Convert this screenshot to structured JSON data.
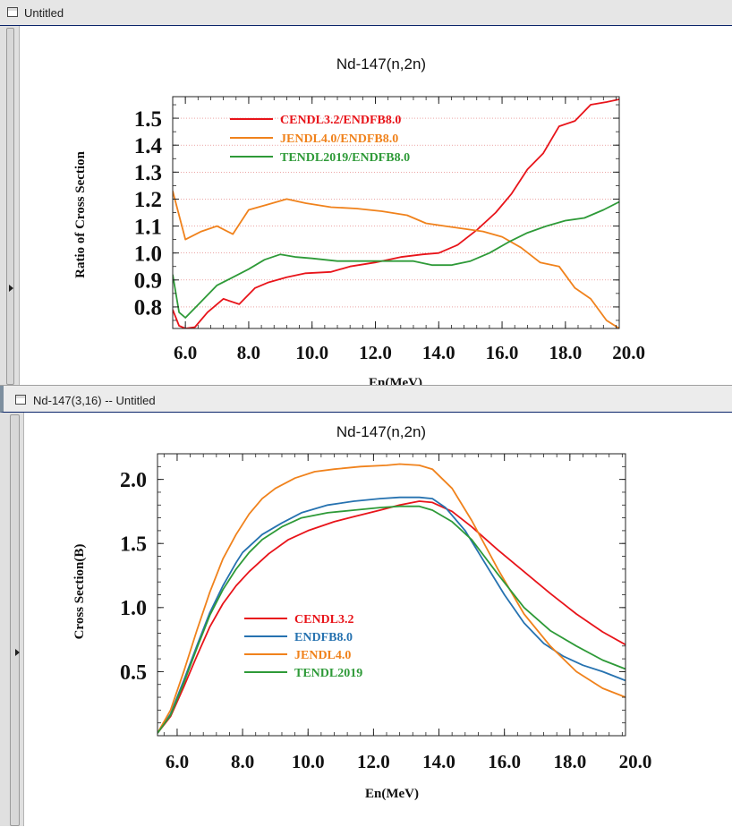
{
  "windows": [
    {
      "title": "Untitled"
    },
    {
      "title": "Nd-147(3,16) -- Untitled"
    }
  ],
  "colors": {
    "red": "#e8141a",
    "blue": "#2672b0",
    "orange": "#f0821c",
    "green": "#2e9a38"
  },
  "chart_data": [
    {
      "type": "line",
      "title": "Nd-147(n,2n)",
      "xlabel": "En(MeV)",
      "ylabel": "Ratio of Cross Section",
      "xlim": [
        5.6,
        19.7
      ],
      "ylim": [
        0.72,
        1.58
      ],
      "xticks": [
        6.0,
        8.0,
        10.0,
        12.0,
        14.0,
        16.0,
        18.0,
        20.0
      ],
      "yticks": [
        0.8,
        0.9,
        1.0,
        1.1,
        1.2,
        1.3,
        1.4,
        1.5
      ],
      "grid": "dotted horizontal",
      "legend_position": "top-left",
      "series": [
        {
          "name": "CENDL3.2/ENDFB8.0",
          "color": "#e8141a",
          "x": [
            5.6,
            5.8,
            6.0,
            6.3,
            6.7,
            7.2,
            7.7,
            8.2,
            8.6,
            9.2,
            9.8,
            10.6,
            11.2,
            12.0,
            12.8,
            13.5,
            14.0,
            14.6,
            15.2,
            15.8,
            16.3,
            16.8,
            17.3,
            17.8,
            18.3,
            18.8,
            19.3,
            19.7
          ],
          "y": [
            0.79,
            0.73,
            0.72,
            0.725,
            0.78,
            0.83,
            0.81,
            0.87,
            0.89,
            0.91,
            0.925,
            0.93,
            0.95,
            0.965,
            0.985,
            0.995,
            1.0,
            1.03,
            1.085,
            1.15,
            1.22,
            1.31,
            1.37,
            1.47,
            1.49,
            1.55,
            1.56,
            1.57
          ]
        },
        {
          "name": "JENDL4.0/ENDFB8.0",
          "color": "#f0821c",
          "x": [
            5.6,
            6.0,
            6.5,
            7.0,
            7.5,
            8.0,
            8.6,
            9.2,
            9.8,
            10.6,
            11.4,
            12.2,
            13.0,
            13.6,
            14.2,
            14.8,
            15.4,
            16.0,
            16.6,
            17.2,
            17.8,
            18.3,
            18.8,
            19.3,
            19.7
          ],
          "y": [
            1.23,
            1.05,
            1.08,
            1.1,
            1.07,
            1.16,
            1.18,
            1.2,
            1.185,
            1.17,
            1.165,
            1.155,
            1.14,
            1.11,
            1.1,
            1.09,
            1.08,
            1.06,
            1.02,
            0.965,
            0.95,
            0.87,
            0.83,
            0.75,
            0.72
          ]
        },
        {
          "name": "TENDL2019/ENDFB8.0",
          "color": "#2e9a38",
          "x": [
            5.6,
            5.8,
            6.0,
            6.5,
            7.0,
            7.5,
            8.0,
            8.5,
            9.0,
            9.5,
            10.0,
            10.8,
            11.6,
            12.4,
            13.2,
            13.8,
            14.4,
            15.0,
            15.6,
            16.2,
            16.8,
            17.4,
            18.0,
            18.6,
            19.2,
            19.7
          ],
          "y": [
            0.92,
            0.78,
            0.76,
            0.82,
            0.88,
            0.91,
            0.94,
            0.975,
            0.995,
            0.985,
            0.98,
            0.97,
            0.97,
            0.97,
            0.97,
            0.955,
            0.955,
            0.97,
            1.0,
            1.04,
            1.075,
            1.1,
            1.12,
            1.13,
            1.16,
            1.19
          ]
        }
      ]
    },
    {
      "type": "line",
      "title": "Nd-147(n,2n)",
      "xlabel": "En(MeV)",
      "ylabel": "Cross Section(B)",
      "xlim": [
        5.4,
        19.7
      ],
      "ylim": [
        0.0,
        2.2
      ],
      "xticks": [
        6.0,
        8.0,
        10.0,
        12.0,
        14.0,
        16.0,
        18.0,
        20.0
      ],
      "yticks": [
        0.5,
        1.0,
        1.5,
        2.0
      ],
      "grid": "off",
      "legend_position": "bottom-left",
      "series": [
        {
          "name": "CENDL3.2",
          "color": "#e8141a",
          "x": [
            5.4,
            5.8,
            6.2,
            6.6,
            7.0,
            7.4,
            7.8,
            8.2,
            8.8,
            9.4,
            10.0,
            10.8,
            11.4,
            12.2,
            12.8,
            13.4,
            13.8,
            14.4,
            15.0,
            15.8,
            16.6,
            17.4,
            18.2,
            19.0,
            19.7
          ],
          "y": [
            0.02,
            0.15,
            0.38,
            0.62,
            0.85,
            1.03,
            1.17,
            1.28,
            1.42,
            1.53,
            1.6,
            1.67,
            1.71,
            1.76,
            1.8,
            1.83,
            1.82,
            1.75,
            1.63,
            1.45,
            1.28,
            1.11,
            0.95,
            0.81,
            0.71
          ]
        },
        {
          "name": "ENDFB8.0",
          "color": "#2672b0",
          "x": [
            5.4,
            5.8,
            6.2,
            6.6,
            7.0,
            7.4,
            7.8,
            8.0,
            8.6,
            9.2,
            9.8,
            10.6,
            11.4,
            12.2,
            12.8,
            13.4,
            13.8,
            14.2,
            14.8,
            15.4,
            16.0,
            16.6,
            17.2,
            17.8,
            18.4,
            19.0,
            19.7
          ],
          "y": [
            0.02,
            0.17,
            0.43,
            0.7,
            0.96,
            1.17,
            1.35,
            1.43,
            1.57,
            1.66,
            1.74,
            1.8,
            1.83,
            1.85,
            1.86,
            1.86,
            1.85,
            1.78,
            1.6,
            1.35,
            1.1,
            0.88,
            0.72,
            0.62,
            0.55,
            0.5,
            0.43
          ]
        },
        {
          "name": "JENDL4.0",
          "color": "#f0821c",
          "x": [
            5.4,
            5.8,
            6.2,
            6.6,
            7.0,
            7.4,
            7.8,
            8.2,
            8.6,
            9.0,
            9.6,
            10.2,
            10.8,
            11.6,
            12.4,
            12.8,
            13.4,
            13.8,
            14.4,
            15.0,
            15.8,
            16.6,
            17.4,
            18.2,
            19.0,
            19.7
          ],
          "y": [
            0.02,
            0.2,
            0.5,
            0.82,
            1.12,
            1.38,
            1.57,
            1.73,
            1.85,
            1.93,
            2.01,
            2.06,
            2.08,
            2.1,
            2.11,
            2.12,
            2.11,
            2.08,
            1.93,
            1.68,
            1.3,
            0.95,
            0.7,
            0.5,
            0.37,
            0.3
          ]
        },
        {
          "name": "TENDL2019",
          "color": "#2e9a38",
          "x": [
            5.4,
            5.8,
            6.2,
            6.6,
            7.0,
            7.4,
            7.8,
            8.2,
            8.6,
            9.2,
            9.8,
            10.6,
            11.4,
            12.2,
            12.8,
            13.4,
            13.8,
            14.4,
            15.0,
            15.8,
            16.6,
            17.4,
            18.2,
            19.0,
            19.7
          ],
          "y": [
            0.02,
            0.16,
            0.41,
            0.68,
            0.94,
            1.14,
            1.3,
            1.43,
            1.53,
            1.63,
            1.7,
            1.74,
            1.76,
            1.78,
            1.79,
            1.79,
            1.76,
            1.67,
            1.53,
            1.26,
            1.0,
            0.82,
            0.7,
            0.59,
            0.52
          ]
        }
      ]
    }
  ]
}
